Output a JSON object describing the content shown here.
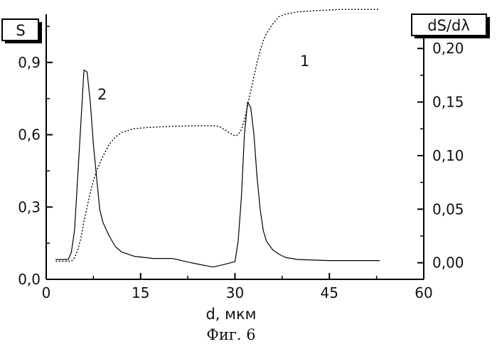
{
  "chart_data": {
    "type": "line",
    "caption": "Фиг. 6",
    "xlabel": "d, мкм",
    "ylabel_left": "S",
    "ylabel_right": "dS/dλ",
    "xlim": [
      0,
      60
    ],
    "ylim_left": [
      0,
      1.1
    ],
    "ylim_right": [
      -0.0155,
      0.232
    ],
    "x_ticks": [
      0,
      15,
      30,
      45,
      60
    ],
    "x_tick_labels": [
      "0",
      "15",
      "30",
      "45",
      "60"
    ],
    "y_left_ticks": [
      0,
      0.3,
      0.6,
      0.9
    ],
    "y_left_tick_labels": [
      "0,0",
      "0,3",
      "0,6",
      "0,9"
    ],
    "y_right_ticks": [
      0,
      0.05,
      0.1,
      0.15,
      0.2
    ],
    "y_right_tick_labels": [
      "0,00",
      "0,05",
      "0,10",
      "0,15",
      "0,20"
    ],
    "grid": false,
    "series": [
      {
        "label": "1",
        "axis": "left",
        "style": "dotted",
        "x": [
          1.5,
          4.0,
          4.5,
          5.0,
          5.5,
          6.0,
          6.5,
          7.0,
          7.5,
          8.0,
          9.0,
          10.0,
          11.0,
          12.0,
          14.0,
          16.0,
          20.0,
          24.0,
          26.0,
          27.5,
          29.0,
          30.0,
          30.5,
          31.0,
          31.5,
          32.0,
          32.5,
          33.0,
          33.5,
          34.0,
          34.5,
          35.0,
          36.0,
          37.0,
          38.0,
          40.0,
          43.0,
          47.0,
          53.0
        ],
        "y": [
          0.075,
          0.075,
          0.09,
          0.12,
          0.17,
          0.24,
          0.3,
          0.36,
          0.41,
          0.45,
          0.51,
          0.56,
          0.59,
          0.61,
          0.625,
          0.63,
          0.635,
          0.637,
          0.638,
          0.635,
          0.61,
          0.595,
          0.6,
          0.62,
          0.66,
          0.72,
          0.78,
          0.84,
          0.9,
          0.95,
          0.99,
          1.02,
          1.06,
          1.09,
          1.1,
          1.11,
          1.115,
          1.12,
          1.12
        ]
      },
      {
        "label": "2",
        "axis": "right",
        "style": "solid",
        "x": [
          1.5,
          3.5,
          4.0,
          4.5,
          5.0,
          5.5,
          6.0,
          6.5,
          7.0,
          7.5,
          8.0,
          8.5,
          9.0,
          10.0,
          11.0,
          12.0,
          14.0,
          17.0,
          20.0,
          23.0,
          26.5,
          28.0,
          30.0,
          30.5,
          31.0,
          31.5,
          32.0,
          32.5,
          33.0,
          33.5,
          34.0,
          34.5,
          35.0,
          36.0,
          37.0,
          38.0,
          40.0,
          45.0,
          53.0
        ],
        "y": [
          0.003,
          0.003,
          0.01,
          0.03,
          0.08,
          0.13,
          0.18,
          0.178,
          0.15,
          0.11,
          0.08,
          0.05,
          0.038,
          0.025,
          0.015,
          0.01,
          0.006,
          0.004,
          0.004,
          0.0,
          -0.004,
          -0.002,
          0.001,
          0.02,
          0.06,
          0.12,
          0.15,
          0.145,
          0.12,
          0.08,
          0.05,
          0.03,
          0.02,
          0.012,
          0.008,
          0.005,
          0.003,
          0.002,
          0.002
        ]
      }
    ]
  }
}
